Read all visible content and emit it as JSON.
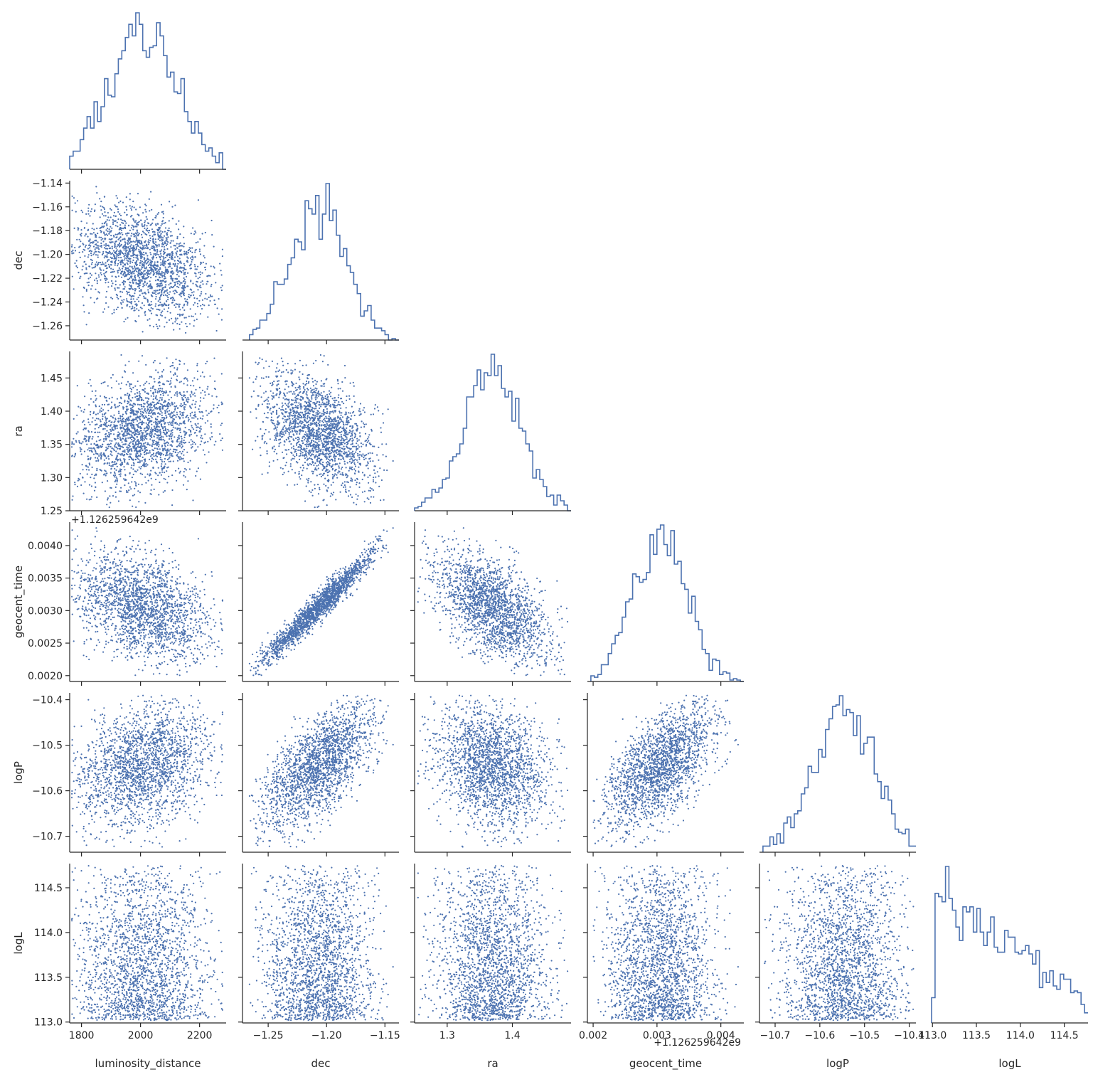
{
  "chart_data": {
    "type": "corner-pairplot",
    "title": "",
    "n_samples_approx": 2000,
    "diagonal": "step-histogram",
    "off_diagonal": "scatter",
    "color": "#4c72b0",
    "parameters": [
      "luminosity_distance",
      "dec",
      "ra",
      "geocent_time",
      "logP",
      "logL"
    ],
    "axis_labels": [
      "luminosity_distance",
      "dec",
      "ra",
      "geocent_time",
      "logP",
      "logL"
    ],
    "ranges": [
      [
        1760,
        2290
      ],
      [
        -1.272,
        -1.138
      ],
      [
        1.25,
        1.49
      ],
      [
        0.00191,
        0.00436
      ],
      [
        -10.735,
        -10.385
      ],
      [
        112.99,
        114.77
      ]
    ],
    "x_ticks": [
      {
        "values": [
          1800,
          2000,
          2200
        ],
        "labels": [
          "1800",
          "2000",
          "2200"
        ]
      },
      {
        "values": [
          -1.25,
          -1.2,
          -1.15
        ],
        "labels": [
          "−1.25",
          "−1.20",
          "−1.15"
        ]
      },
      {
        "values": [
          1.3,
          1.4
        ],
        "labels": [
          "1.3",
          "1.4"
        ]
      },
      {
        "values": [
          0.002,
          0.003,
          0.004
        ],
        "labels": [
          "0.002",
          "0.003",
          "0.004"
        ]
      },
      {
        "values": [
          -10.7,
          -10.6,
          -10.5,
          -10.4
        ],
        "labels": [
          "−10.7",
          "−10.6",
          "−10.5",
          "−10.4"
        ]
      },
      {
        "values": [
          113.0,
          113.5,
          114.0,
          114.5
        ],
        "labels": [
          "113.0",
          "113.5",
          "114.0",
          "114.5"
        ]
      }
    ],
    "y_ticks": [
      null,
      {
        "values": [
          -1.14,
          -1.16,
          -1.18,
          -1.2,
          -1.22,
          -1.24,
          -1.26
        ],
        "labels": [
          "−1.14",
          "−1.16",
          "−1.18",
          "−1.20",
          "−1.22",
          "−1.24",
          "−1.26"
        ]
      },
      {
        "values": [
          1.25,
          1.3,
          1.35,
          1.4,
          1.45
        ],
        "labels": [
          "1.25",
          "1.30",
          "1.35",
          "1.40",
          "1.45"
        ]
      },
      {
        "values": [
          0.002,
          0.0025,
          0.003,
          0.0035,
          0.004
        ],
        "labels": [
          "0.0020",
          "0.0025",
          "0.0030",
          "0.0035",
          "0.0040"
        ]
      },
      {
        "values": [
          -10.7,
          -10.6,
          -10.5,
          -10.4
        ],
        "labels": [
          "−10.7",
          "−10.6",
          "−10.5",
          "−10.4"
        ]
      },
      {
        "values": [
          113.0,
          113.5,
          114.0,
          114.5
        ],
        "labels": [
          "113.0",
          "113.5",
          "114.0",
          "114.5"
        ]
      }
    ],
    "offset_text": "+1.126259642e9",
    "marginals": [
      {
        "shape": "normal",
        "mean": 2010,
        "sd": 115,
        "lo": 1765,
        "hi": 2280
      },
      {
        "shape": "normal",
        "mean": -1.207,
        "sd": 0.025,
        "lo": -1.268,
        "hi": -1.142
      },
      {
        "shape": "normal",
        "mean": 1.37,
        "sd": 0.045,
        "lo": 1.255,
        "hi": 1.485
      },
      {
        "shape": "normal",
        "mean": 0.00305,
        "sd": 0.00045,
        "lo": 0.002,
        "hi": 0.00432
      },
      {
        "shape": "normal",
        "mean": -10.545,
        "sd": 0.068,
        "lo": -10.725,
        "hi": -10.39
      },
      {
        "shape": "decreasing",
        "lo": 113.02,
        "hi": 114.75
      }
    ],
    "correlations": [
      [
        1.0,
        -0.32,
        0.3,
        -0.32,
        0.25,
        0.0
      ],
      [
        -0.32,
        1.0,
        -0.45,
        0.97,
        0.65,
        0.0
      ],
      [
        0.3,
        -0.45,
        1.0,
        -0.55,
        -0.25,
        0.0
      ],
      [
        -0.32,
        0.97,
        -0.55,
        1.0,
        0.62,
        0.0
      ],
      [
        0.25,
        0.65,
        -0.25,
        0.62,
        1.0,
        0.0
      ],
      [
        0.0,
        0.0,
        0.0,
        0.0,
        0.0,
        1.0
      ]
    ]
  }
}
